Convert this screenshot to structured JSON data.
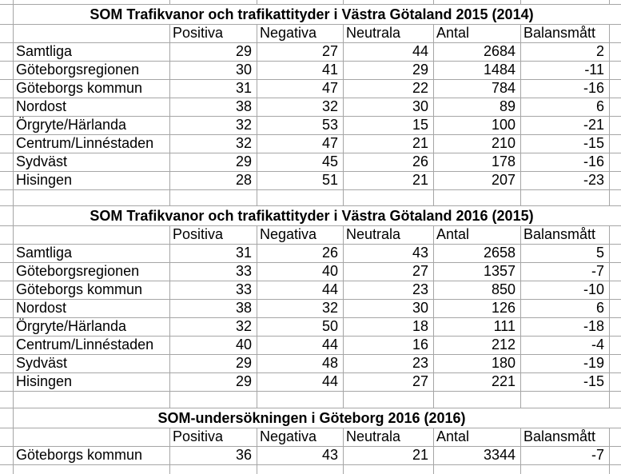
{
  "columns": [
    "Positiva",
    "Negativa",
    "Neutrala",
    "Antal",
    "Balansmått"
  ],
  "tables": [
    {
      "title": "SOM Trafikvanor och trafikattityder i Västra Götaland 2015 (2014)",
      "rows": [
        {
          "label": "Samtliga",
          "values": [
            29,
            27,
            44,
            2684,
            2
          ]
        },
        {
          "label": "Göteborgsregionen",
          "values": [
            30,
            41,
            29,
            1484,
            -11
          ]
        },
        {
          "label": "Göteborgs kommun",
          "values": [
            31,
            47,
            22,
            784,
            -16
          ]
        },
        {
          "label": "Nordost",
          "values": [
            38,
            32,
            30,
            89,
            6
          ]
        },
        {
          "label": "Örgryte/Härlanda",
          "values": [
            32,
            53,
            15,
            100,
            -21
          ]
        },
        {
          "label": "Centrum/Linnéstaden",
          "values": [
            32,
            47,
            21,
            210,
            -15
          ]
        },
        {
          "label": "Sydväst",
          "values": [
            29,
            45,
            26,
            178,
            -16
          ]
        },
        {
          "label": "Hisingen",
          "values": [
            28,
            51,
            21,
            207,
            -23
          ]
        }
      ]
    },
    {
      "title": "SOM Trafikvanor och trafikattityder i Västra Götaland 2016 (2015)",
      "rows": [
        {
          "label": "Samtliga",
          "values": [
            31,
            26,
            43,
            2658,
            5
          ]
        },
        {
          "label": "Göteborgsregionen",
          "values": [
            33,
            40,
            27,
            1357,
            -7
          ]
        },
        {
          "label": "Göteborgs kommun",
          "values": [
            33,
            44,
            23,
            850,
            -10
          ]
        },
        {
          "label": "Nordost",
          "values": [
            38,
            32,
            30,
            126,
            6
          ]
        },
        {
          "label": "Örgryte/Härlanda",
          "values": [
            32,
            50,
            18,
            111,
            -18
          ]
        },
        {
          "label": "Centrum/Linnéstaden",
          "values": [
            40,
            44,
            16,
            212,
            -4
          ]
        },
        {
          "label": "Sydväst",
          "values": [
            29,
            48,
            23,
            180,
            -19
          ]
        },
        {
          "label": "Hisingen",
          "values": [
            29,
            44,
            27,
            221,
            -15
          ]
        }
      ]
    },
    {
      "title": "SOM-undersökningen i Göteborg 2016 (2016)",
      "rows": [
        {
          "label": "Göteborgs kommun",
          "values": [
            36,
            43,
            21,
            3344,
            -7
          ]
        }
      ]
    }
  ],
  "colors": {
    "gridline": "#a6a6a6",
    "text": "#000000",
    "background": "#ffffff"
  }
}
